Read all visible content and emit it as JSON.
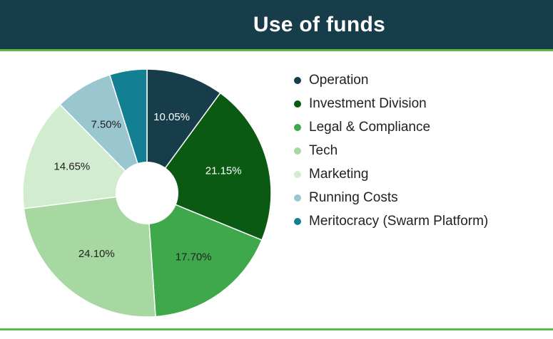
{
  "header": {
    "title": "Use of funds"
  },
  "colors": {
    "header_bg": "#173c4a",
    "accent_rule": "#5cbc46"
  },
  "chart_data": {
    "type": "pie",
    "title": "Use of funds",
    "donut": true,
    "legend_position": "right",
    "slices": [
      {
        "label": "Operation",
        "value": 10.05,
        "display": "10.05%",
        "color": "#173c4a",
        "label_color": "#ffffff"
      },
      {
        "label": "Investment Division",
        "value": 21.15,
        "display": "21.15%",
        "color": "#0b5a14",
        "label_color": "#ffffff"
      },
      {
        "label": "Legal & Compliance",
        "value": 17.7,
        "display": "17.70%",
        "color": "#3ea84a",
        "label_color": "#222222"
      },
      {
        "label": "Tech",
        "value": 24.1,
        "display": "24.10%",
        "color": "#a8d8a2",
        "label_color": "#222222"
      },
      {
        "label": "Marketing",
        "value": 14.65,
        "display": "14.65%",
        "color": "#d2ecd0",
        "label_color": "#222222"
      },
      {
        "label": "Running Costs",
        "value": 7.5,
        "display": "7.50%",
        "color": "#9ac6d0",
        "label_color": "#222222"
      },
      {
        "label": "Meritocracy (Swarm Platform)",
        "value": 4.85,
        "display": "",
        "color": "#137f93",
        "label_color": "#ffffff"
      }
    ]
  }
}
